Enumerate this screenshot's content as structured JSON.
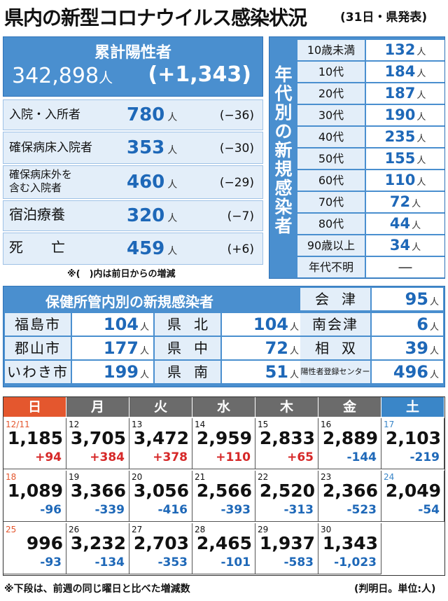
{
  "title": "県内の新型コロナウイルス感染状況",
  "subtitle": "(31日・県発表)",
  "total": {
    "label": "累計陽性者",
    "value": "342,898",
    "unit": "人",
    "change": "(+1,343)"
  },
  "stats": [
    {
      "label": "入院・入所者",
      "value": "780",
      "unit": "人",
      "change": "(−36)"
    },
    {
      "label": "確保病床入院者",
      "value": "353",
      "unit": "人",
      "change": "(−30)"
    },
    {
      "label": "確保病床外を\n含む入院者",
      "value": "460",
      "unit": "人",
      "change": "(−29)"
    },
    {
      "label": "宿泊療養",
      "value": "320",
      "unit": "人",
      "change": "(−7)"
    },
    {
      "label": "死　　亡",
      "value": "459",
      "unit": "人",
      "change": "(+6)"
    }
  ],
  "stats_note": "※(　)内は前日からの増減",
  "age": {
    "title": "年代別の新規感染者",
    "rows": [
      {
        "label": "10歳未満",
        "value": "132",
        "unit": "人"
      },
      {
        "label": "10代",
        "value": "184",
        "unit": "人"
      },
      {
        "label": "20代",
        "value": "187",
        "unit": "人"
      },
      {
        "label": "30代",
        "value": "190",
        "unit": "人"
      },
      {
        "label": "40代",
        "value": "235",
        "unit": "人"
      },
      {
        "label": "50代",
        "value": "155",
        "unit": "人"
      },
      {
        "label": "60代",
        "value": "110",
        "unit": "人"
      },
      {
        "label": "70代",
        "value": "72",
        "unit": "人"
      },
      {
        "label": "80代",
        "value": "44",
        "unit": "人"
      },
      {
        "label": "90歳以上",
        "value": "34",
        "unit": "人"
      },
      {
        "label": "年代不明",
        "value": "—",
        "unit": ""
      }
    ]
  },
  "health": {
    "title": "保健所管内別の新規感染者",
    "entries": [
      {
        "name": "福島市",
        "value": "104",
        "unit": "人"
      },
      {
        "name": "郡山市",
        "value": "177",
        "unit": "人"
      },
      {
        "name": "いわき市",
        "value": "199",
        "unit": "人"
      },
      {
        "name": "県北",
        "value": "104",
        "unit": "人"
      },
      {
        "name": "県中",
        "value": "72",
        "unit": "人"
      },
      {
        "name": "県南",
        "value": "51",
        "unit": "人"
      },
      {
        "name": "会津",
        "value": "95",
        "unit": "人"
      },
      {
        "name": "南会津",
        "value": "6",
        "unit": "人"
      },
      {
        "name": "相双",
        "value": "39",
        "unit": "人"
      },
      {
        "name": "陽性者登録センター",
        "value": "496",
        "unit": "人"
      }
    ]
  },
  "calendar": {
    "days": [
      "日",
      "月",
      "火",
      "水",
      "木",
      "金",
      "土"
    ],
    "colors": {
      "sun": "#e4572e",
      "weekday": "#6b6b6b",
      "sat": "#3a86c8",
      "pos": "#d62828",
      "neg": "#1e68b8"
    },
    "weeks": [
      [
        {
          "date": "12/11",
          "value": "1,185",
          "change": "+94"
        },
        {
          "date": "12",
          "value": "3,705",
          "change": "+384"
        },
        {
          "date": "13",
          "value": "3,472",
          "change": "+378"
        },
        {
          "date": "14",
          "value": "2,959",
          "change": "+110"
        },
        {
          "date": "15",
          "value": "2,833",
          "change": "+65"
        },
        {
          "date": "16",
          "value": "2,889",
          "change": "-144"
        },
        {
          "date": "17",
          "value": "2,103",
          "change": "-219"
        }
      ],
      [
        {
          "date": "18",
          "value": "1,089",
          "change": "-96"
        },
        {
          "date": "19",
          "value": "3,366",
          "change": "-339"
        },
        {
          "date": "20",
          "value": "3,056",
          "change": "-416"
        },
        {
          "date": "21",
          "value": "2,566",
          "change": "-393"
        },
        {
          "date": "22",
          "value": "2,520",
          "change": "-313"
        },
        {
          "date": "23",
          "value": "2,366",
          "change": "-523"
        },
        {
          "date": "24",
          "value": "2,049",
          "change": "-54"
        }
      ],
      [
        {
          "date": "25",
          "value": "996",
          "change": "-93"
        },
        {
          "date": "26",
          "value": "3,232",
          "change": "-134"
        },
        {
          "date": "27",
          "value": "2,703",
          "change": "-353"
        },
        {
          "date": "28",
          "value": "2,465",
          "change": "-101"
        },
        {
          "date": "29",
          "value": "1,937",
          "change": "-583"
        },
        {
          "date": "30",
          "value": "1,343",
          "change": "-1,023"
        }
      ]
    ]
  },
  "note_bottom": "※下段は、前週の同じ曜日と比べた増減数",
  "note_unit": "(判明日。単位:人)"
}
